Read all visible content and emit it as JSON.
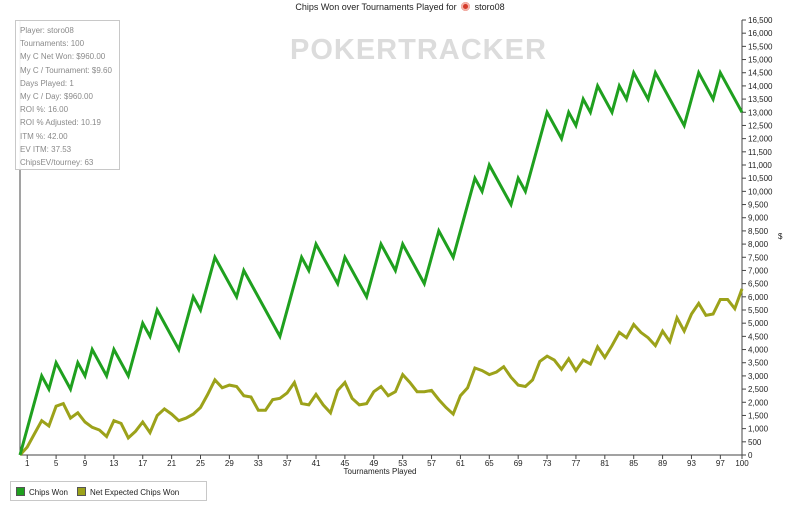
{
  "header": {
    "title_prefix": "Chips Won over Tournaments Played for",
    "player_name": "storo08"
  },
  "watermark": "POKERTRACKER",
  "info": [
    "Player: storo08",
    "Tournaments: 100",
    "My C Net Won: $960.00",
    "My C / Tournament: $9.60",
    "Days Played: 1",
    "My C / Day: $960.00",
    "ROI %: 16.00",
    "ROI % Adjusted: 10.19",
    "ITM %: 42.00",
    "EV ITM: 37.53",
    "ChipsEV/tourney: 63"
  ],
  "chart_data": {
    "type": "line",
    "title": "Chips Won over Tournaments Played for storo08",
    "xlabel": "Tournaments Played",
    "ylabel": "$",
    "xlim": [
      0,
      100
    ],
    "ylim": [
      0,
      16500
    ],
    "x_ticks": [
      1,
      5,
      9,
      13,
      17,
      21,
      25,
      29,
      33,
      37,
      41,
      45,
      49,
      53,
      57,
      61,
      65,
      69,
      73,
      77,
      81,
      85,
      89,
      93,
      97,
      100
    ],
    "y_ticks": [
      0,
      500,
      1000,
      1500,
      2000,
      2500,
      3000,
      3500,
      4000,
      4500,
      5000,
      5500,
      6000,
      6500,
      7000,
      7500,
      8000,
      8500,
      9000,
      9500,
      10000,
      10500,
      11000,
      11500,
      12000,
      12500,
      13000,
      13500,
      14000,
      14500,
      15000,
      15500,
      16000,
      16500
    ],
    "y_axis_side": "right",
    "grid": false,
    "legend": "bottom-left",
    "series": [
      {
        "name": "Chips Won",
        "color": "#1fa01f",
        "points": [
          [
            0,
            0
          ],
          [
            3,
            3000
          ],
          [
            4,
            2500
          ],
          [
            5,
            3500
          ],
          [
            7,
            2500
          ],
          [
            8,
            3500
          ],
          [
            9,
            3000
          ],
          [
            10,
            4000
          ],
          [
            12,
            3000
          ],
          [
            13,
            4000
          ],
          [
            15,
            3000
          ],
          [
            17,
            5000
          ],
          [
            18,
            4500
          ],
          [
            19,
            5500
          ],
          [
            22,
            4000
          ],
          [
            24,
            6000
          ],
          [
            25,
            5500
          ],
          [
            27,
            7500
          ],
          [
            30,
            6000
          ],
          [
            31,
            7000
          ],
          [
            36,
            4500
          ],
          [
            39,
            7500
          ],
          [
            40,
            7000
          ],
          [
            41,
            8000
          ],
          [
            44,
            6500
          ],
          [
            45,
            7500
          ],
          [
            48,
            6000
          ],
          [
            50,
            8000
          ],
          [
            52,
            7000
          ],
          [
            53,
            8000
          ],
          [
            56,
            6500
          ],
          [
            58,
            8500
          ],
          [
            60,
            7500
          ],
          [
            63,
            10500
          ],
          [
            64,
            10000
          ],
          [
            65,
            11000
          ],
          [
            68,
            9500
          ],
          [
            69,
            10500
          ],
          [
            70,
            10000
          ],
          [
            73,
            13000
          ],
          [
            75,
            12000
          ],
          [
            76,
            13000
          ],
          [
            77,
            12500
          ],
          [
            78,
            13500
          ],
          [
            79,
            13000
          ],
          [
            80,
            14000
          ],
          [
            82,
            13000
          ],
          [
            83,
            14000
          ],
          [
            84,
            13500
          ],
          [
            85,
            14500
          ],
          [
            87,
            13500
          ],
          [
            88,
            14500
          ],
          [
            92,
            12500
          ],
          [
            94,
            14500
          ],
          [
            96,
            13500
          ],
          [
            97,
            14500
          ],
          [
            100,
            13000
          ]
        ]
      },
      {
        "name": "Net Expected Chips Won",
        "color": "#9ca21a",
        "points": [
          [
            0,
            0
          ],
          [
            1,
            300
          ],
          [
            2,
            800
          ],
          [
            3,
            1300
          ],
          [
            4,
            1100
          ],
          [
            5,
            1850
          ],
          [
            6,
            1950
          ],
          [
            7,
            1400
          ],
          [
            8,
            1600
          ],
          [
            9,
            1250
          ],
          [
            10,
            1050
          ],
          [
            11,
            950
          ],
          [
            12,
            700
          ],
          [
            13,
            1300
          ],
          [
            14,
            1200
          ],
          [
            15,
            650
          ],
          [
            16,
            900
          ],
          [
            17,
            1250
          ],
          [
            18,
            850
          ],
          [
            19,
            1500
          ],
          [
            20,
            1750
          ],
          [
            21,
            1550
          ],
          [
            22,
            1300
          ],
          [
            23,
            1400
          ],
          [
            24,
            1550
          ],
          [
            25,
            1800
          ],
          [
            26,
            2300
          ],
          [
            27,
            2850
          ],
          [
            28,
            2550
          ],
          [
            29,
            2650
          ],
          [
            30,
            2600
          ],
          [
            31,
            2250
          ],
          [
            32,
            2200
          ],
          [
            33,
            1700
          ],
          [
            34,
            1700
          ],
          [
            35,
            2100
          ],
          [
            36,
            2150
          ],
          [
            37,
            2350
          ],
          [
            38,
            2750
          ],
          [
            39,
            1950
          ],
          [
            40,
            1900
          ],
          [
            41,
            2300
          ],
          [
            42,
            1900
          ],
          [
            43,
            1600
          ],
          [
            44,
            2450
          ],
          [
            45,
            2750
          ],
          [
            46,
            2150
          ],
          [
            47,
            1900
          ],
          [
            48,
            1950
          ],
          [
            49,
            2400
          ],
          [
            50,
            2600
          ],
          [
            51,
            2250
          ],
          [
            52,
            2400
          ],
          [
            53,
            3050
          ],
          [
            54,
            2750
          ],
          [
            55,
            2400
          ],
          [
            56,
            2400
          ],
          [
            57,
            2450
          ],
          [
            58,
            2100
          ],
          [
            59,
            1800
          ],
          [
            60,
            1550
          ],
          [
            61,
            2250
          ],
          [
            62,
            2550
          ],
          [
            63,
            3300
          ],
          [
            64,
            3200
          ],
          [
            65,
            3050
          ],
          [
            66,
            3150
          ],
          [
            67,
            3350
          ],
          [
            68,
            2950
          ],
          [
            69,
            2650
          ],
          [
            70,
            2600
          ],
          [
            71,
            2850
          ],
          [
            72,
            3550
          ],
          [
            73,
            3750
          ],
          [
            74,
            3600
          ],
          [
            75,
            3250
          ],
          [
            76,
            3650
          ],
          [
            77,
            3200
          ],
          [
            78,
            3600
          ],
          [
            79,
            3450
          ],
          [
            80,
            4100
          ],
          [
            81,
            3700
          ],
          [
            82,
            4150
          ],
          [
            83,
            4650
          ],
          [
            84,
            4450
          ],
          [
            85,
            4950
          ],
          [
            86,
            4650
          ],
          [
            87,
            4450
          ],
          [
            88,
            4150
          ],
          [
            89,
            4700
          ],
          [
            90,
            4300
          ],
          [
            91,
            5200
          ],
          [
            92,
            4700
          ],
          [
            93,
            5350
          ],
          [
            94,
            5750
          ],
          [
            95,
            5300
          ],
          [
            96,
            5350
          ],
          [
            97,
            5900
          ],
          [
            98,
            5900
          ],
          [
            99,
            5550
          ],
          [
            100,
            6300
          ]
        ]
      }
    ]
  }
}
